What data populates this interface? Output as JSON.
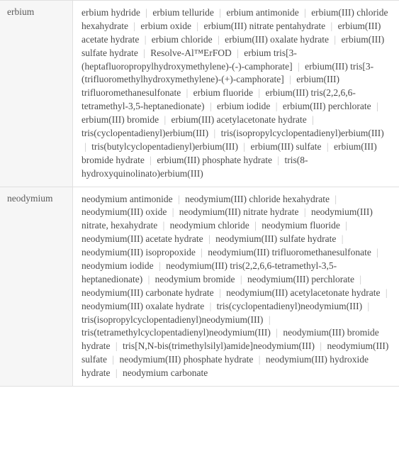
{
  "rows": [
    {
      "label": "erbium",
      "compounds": [
        "erbium hydride",
        "erbium telluride",
        "erbium antimonide",
        "erbium(III) chloride hexahydrate",
        "erbium oxide",
        "erbium(III) nitrate pentahydrate",
        "erbium(III) acetate hydrate",
        "erbium chloride",
        "erbium(III) oxalate hydrate",
        "erbium(III) sulfate hydrate",
        "Resolve-Al™ErFOD",
        "erbium tris[3-(heptafluoropropylhydroxymethylene)-(-)-camphorate]",
        "erbium(III) tris[3-(trifluoromethylhydroxymethylene)-(+)-camphorate]",
        "erbium(III) trifluoromethanesulfonate",
        "erbium fluoride",
        "erbium(III) tris(2,2,6,6-tetramethyl-3,5-heptanedionate)",
        "erbium iodide",
        "erbium(III) perchlorate",
        "erbium(III) bromide",
        "erbium(III) acetylacetonate hydrate",
        "tris(cyclopentadienyl)erbium(III)",
        "tris(isopropylcyclopentadienyl)erbium(III)",
        "tris(butylcyclopentadienyl)erbium(III)",
        "erbium(III) sulfate",
        "erbium(III) bromide hydrate",
        "erbium(III) phosphate hydrate",
        "tris(8-hydroxyquinolinato)erbium(III)"
      ]
    },
    {
      "label": "neodymium",
      "compounds": [
        "neodymium antimonide",
        "neodymium(III) chloride hexahydrate",
        "neodymium(III) oxide",
        "neodymium(III) nitrate hydrate",
        "neodymium(III) nitrate, hexahydrate",
        "neodymium chloride",
        "neodymium fluoride",
        "neodymium(III) acetate hydrate",
        "neodymium(III) sulfate hydrate",
        "neodymium(III) isopropoxide",
        "neodymium(III) trifluoromethanesulfonate",
        "neodymium iodide",
        "neodymium(III) tris(2,2,6,6-tetramethyl-3,5-heptanedionate)",
        "neodymium bromide",
        "neodymium(III) perchlorate",
        "neodymium(III) carbonate hydrate",
        "neodymium(III) acetylacetonate hydrate",
        "neodymium(III) oxalate hydrate",
        "tris(cyclopentadienyl)neodymium(III)",
        "tris(isopropylcyclopentadienyl)neodymium(III)",
        "tris(tetramethylcyclopentadienyl)neodymium(III)",
        "neodymium(III) bromide hydrate",
        "tris[N,N-bis(trimethylsilyl)amide]neodymium(III)",
        "neodymium(III) sulfate",
        "neodymium(III) phosphate hydrate",
        "neodymium(III) hydroxide hydrate",
        "neodymium carbonate"
      ]
    }
  ],
  "separator": "|"
}
